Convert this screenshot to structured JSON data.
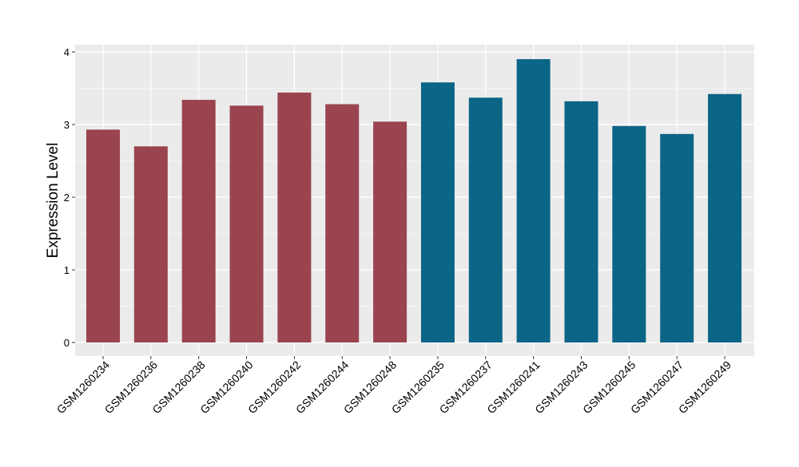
{
  "chart_data": {
    "type": "bar",
    "title": "",
    "xlabel": "",
    "ylabel": "Expression Level",
    "ylim": [
      0,
      4.0
    ],
    "yticks": [
      0,
      1,
      2,
      3,
      4
    ],
    "grid": true,
    "legend": "none",
    "categories": [
      "GSM1260234",
      "GSM1260236",
      "GSM1260238",
      "GSM1260240",
      "GSM1260242",
      "GSM1260244",
      "GSM1260248",
      "GSM1260235",
      "GSM1260237",
      "GSM1260241",
      "GSM1260243",
      "GSM1260245",
      "GSM1260247",
      "GSM1260249"
    ],
    "values": [
      2.93,
      2.7,
      3.34,
      3.26,
      3.44,
      3.28,
      3.04,
      3.58,
      3.37,
      3.9,
      3.32,
      2.98,
      2.87,
      3.42
    ],
    "bar_colors": [
      "#9a4450",
      "#9a4450",
      "#9a4450",
      "#9a4450",
      "#9a4450",
      "#9a4450",
      "#9a4450",
      "#0b6586",
      "#0b6586",
      "#0b6586",
      "#0b6586",
      "#0b6586",
      "#0b6586",
      "#0b6586"
    ]
  },
  "colors": {
    "panel_background": "#ebebeb",
    "grid_major": "#ffffff",
    "grid_minor": "#f5f5f5",
    "tick_text": "#000000"
  }
}
